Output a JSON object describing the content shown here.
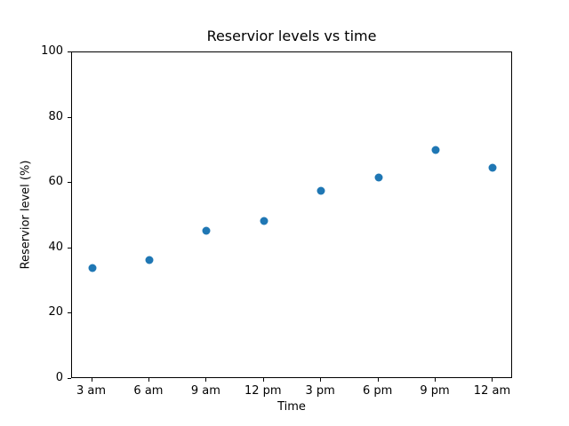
{
  "figure": {
    "background": "#ffffff",
    "text_color": "#000000"
  },
  "chart_data": {
    "type": "scatter",
    "title": "Reservior levels vs time",
    "xlabel": "Time",
    "ylabel": "Reservior level (%)",
    "categories": [
      "3 am",
      "6 am",
      "9 am",
      "12 pm",
      "3 pm",
      "6 pm",
      "9 pm",
      "12 am"
    ],
    "values": [
      33.9,
      36.5,
      45.5,
      48.4,
      57.6,
      61.6,
      70.0,
      64.6
    ],
    "ylim": [
      0,
      100
    ],
    "yticks": [
      0,
      20,
      40,
      60,
      80,
      100
    ],
    "point_color": "#1f77b4",
    "axis_color": "#000000",
    "grid": false,
    "legend": "none",
    "marker_diameter_px": 9
  }
}
